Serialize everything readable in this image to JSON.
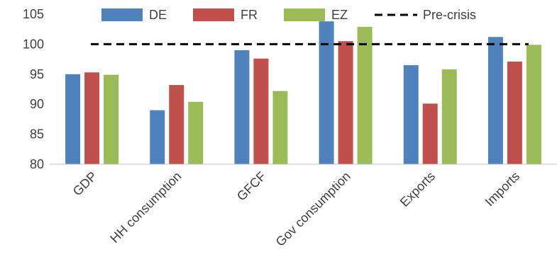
{
  "chart_data": {
    "type": "bar",
    "categories": [
      "GDP",
      "HH consumption",
      "GFCF",
      "Gov consumption",
      "Exports",
      "Imports"
    ],
    "series": [
      {
        "name": "DE",
        "color": "#4F81BD",
        "values": [
          95.0,
          89.0,
          99.0,
          103.8,
          96.5,
          101.2
        ]
      },
      {
        "name": "FR",
        "color": "#C0504D",
        "values": [
          95.3,
          93.2,
          97.6,
          100.5,
          90.1,
          97.1
        ]
      },
      {
        "name": "EZ",
        "color": "#9BBB59",
        "values": [
          94.9,
          90.4,
          92.2,
          102.9,
          95.8,
          99.9
        ]
      }
    ],
    "reference_line": {
      "name": "Pre-crisis",
      "value": 100,
      "style": "dashed",
      "color": "#000000"
    },
    "ylim": [
      80,
      105
    ],
    "yticks": [
      80,
      85,
      90,
      95,
      100,
      105
    ],
    "title": "",
    "xlabel": "",
    "ylabel": "",
    "grid": false,
    "legend": {
      "position": "top",
      "entries": [
        "DE",
        "FR",
        "EZ",
        "Pre-crisis"
      ]
    }
  }
}
